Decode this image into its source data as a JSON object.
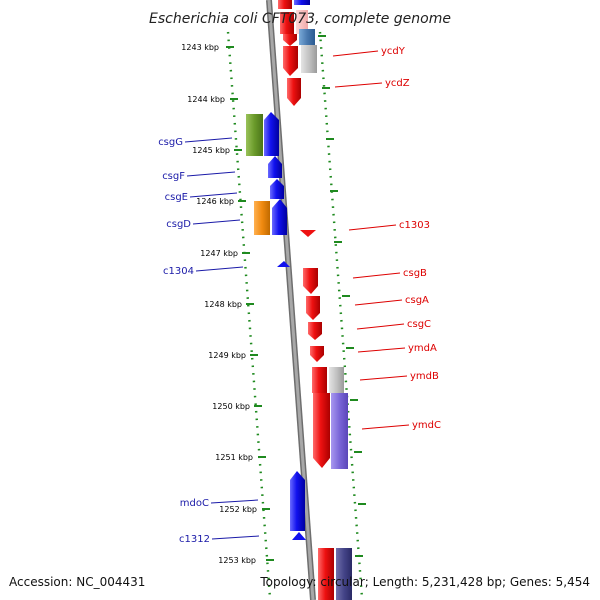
{
  "title": "Escherichia coli CFT073, complete genome",
  "footer": {
    "accession": "Accession: NC_004431",
    "summary": "Topology: circular; Length: 5,231,428 bp; Genes: 5,454"
  },
  "colors": {
    "background": "#ffffff",
    "backbone": "#909090",
    "tick": "#1f8a1f",
    "forward_label": "#dd0000",
    "reverse_label": "#1a1aa8",
    "red": "#ee1111",
    "blue": "#1111ee",
    "green": "#6a9a2a",
    "orange": "#f08a10",
    "grey": "#c2c2c2",
    "purple": "#7a66d8",
    "navy": "#444488",
    "steel": "#4a7ab0"
  },
  "kbp_markers": [
    "1243 kbp",
    "1244 kbp",
    "1245 kbp",
    "1246 kbp",
    "1247 kbp",
    "1248 kbp",
    "1249 kbp",
    "1250 kbp",
    "1251 kbp",
    "1252 kbp",
    "1253 kbp"
  ],
  "genes_forward": [
    "ycdY",
    "ycdZ",
    "c1303",
    "csgB",
    "csgA",
    "csgC",
    "ymdA",
    "ymdB",
    "ymdC"
  ],
  "genes_reverse": [
    "csgG",
    "csgF",
    "csgE",
    "csgD",
    "c1304",
    "mdoC",
    "c1312"
  ]
}
